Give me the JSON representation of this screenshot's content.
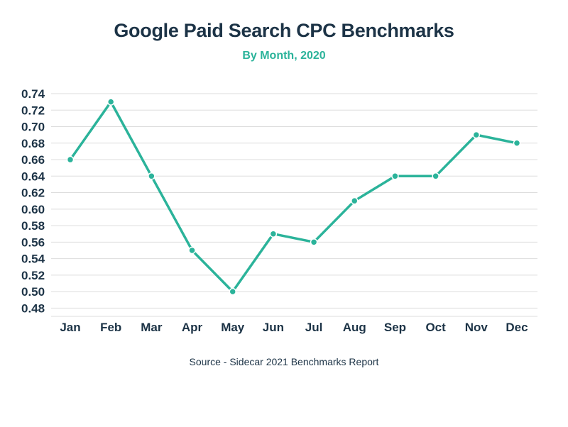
{
  "header": {
    "title": "Google Paid Search CPC Benchmarks",
    "subtitle": "By Month, 2020"
  },
  "footer": {
    "source": "Source - Sidecar 2021 Benchmarks Report"
  },
  "colors": {
    "line": "#2bb39a",
    "title": "#1c3346",
    "grid": "#dddddd"
  },
  "chart_data": {
    "type": "line",
    "title": "Google Paid Search CPC Benchmarks",
    "subtitle": "By Month, 2020",
    "xlabel": "",
    "ylabel": "",
    "categories": [
      "Jan",
      "Feb",
      "Mar",
      "Apr",
      "May",
      "Jun",
      "Jul",
      "Aug",
      "Sep",
      "Oct",
      "Nov",
      "Dec"
    ],
    "series": [
      {
        "values": [
          0.66,
          0.73,
          0.64,
          0.55,
          0.5,
          0.57,
          0.56,
          0.61,
          0.64,
          0.64,
          0.69,
          0.68
        ]
      }
    ],
    "ylim": [
      0.47,
      0.74
    ],
    "yticks": [
      "0.74",
      "0.72",
      "0.70",
      "0.68",
      "0.66",
      "0.64",
      "0.62",
      "0.60",
      "0.58",
      "0.56",
      "0.54",
      "0.52",
      "0.50",
      "0.48"
    ],
    "grid": true,
    "legend": "none"
  }
}
